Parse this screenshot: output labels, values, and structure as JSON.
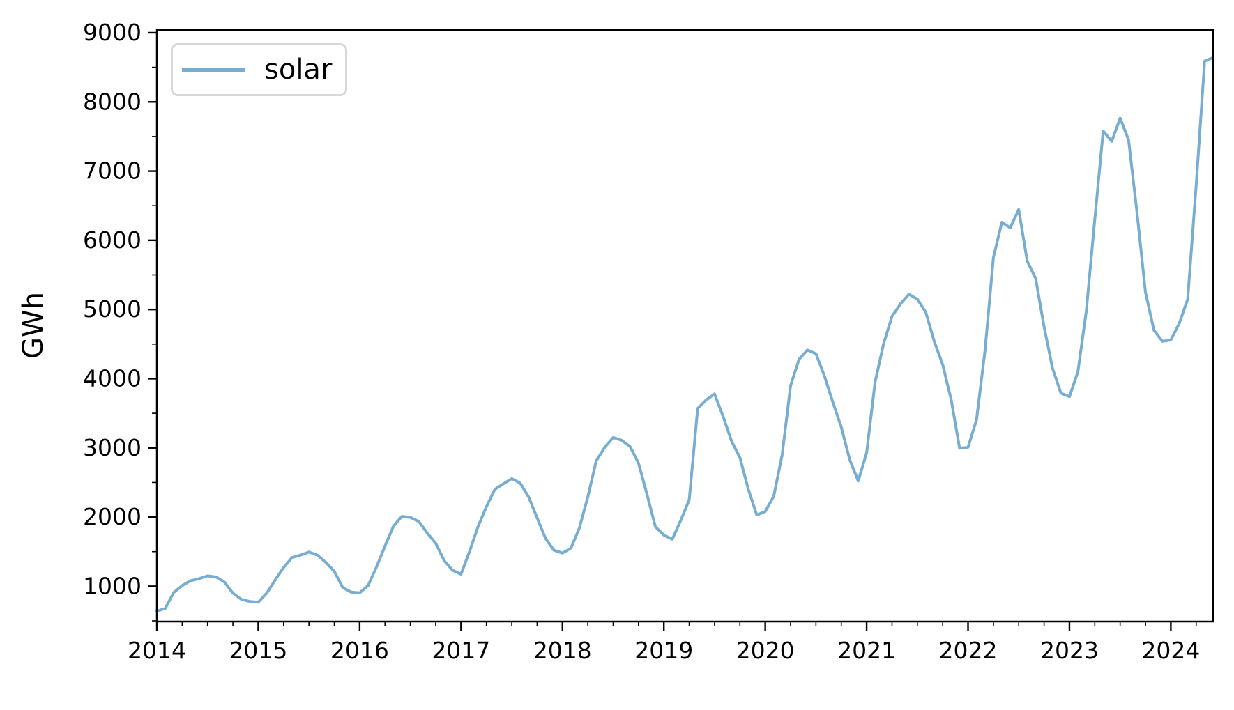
{
  "axes": {
    "ylabel": "GWh"
  },
  "legend": {
    "label": "solar"
  },
  "chart_data": {
    "type": "line",
    "title": "",
    "xlabel": "",
    "ylabel": "GWh",
    "frequency": "monthly",
    "x_start": "2014-01",
    "x_end": "2024-06",
    "x_tick_labels": [
      "2014",
      "2015",
      "2016",
      "2017",
      "2018",
      "2019",
      "2020",
      "2021",
      "2022",
      "2023",
      "2024"
    ],
    "y_ticks": [
      1000,
      2000,
      3000,
      4000,
      5000,
      6000,
      7000,
      8000,
      9000
    ],
    "ylim": [
      490,
      9040
    ],
    "grid": false,
    "legend_position": "upper-left",
    "line_color": "#78add2",
    "series": [
      {
        "name": "solar",
        "color": "#78add2",
        "values": [
          640,
          680,
          910,
          1010,
          1080,
          1110,
          1150,
          1135,
          1060,
          900,
          810,
          780,
          770,
          900,
          1090,
          1270,
          1415,
          1450,
          1495,
          1450,
          1345,
          1215,
          980,
          915,
          905,
          1010,
          1280,
          1580,
          1870,
          2010,
          1995,
          1935,
          1770,
          1620,
          1370,
          1230,
          1175,
          1500,
          1860,
          2150,
          2400,
          2480,
          2555,
          2490,
          2290,
          1990,
          1690,
          1520,
          1480,
          1550,
          1840,
          2290,
          2810,
          3010,
          3150,
          3110,
          3020,
          2780,
          2330,
          1860,
          1740,
          1680,
          1950,
          2250,
          3570,
          3690,
          3780,
          3460,
          3100,
          2860,
          2400,
          2030,
          2080,
          2300,
          2900,
          3900,
          4280,
          4415,
          4360,
          4040,
          3660,
          3300,
          2830,
          2520,
          2930,
          3950,
          4500,
          4900,
          5080,
          5220,
          5150,
          4960,
          4540,
          4200,
          3700,
          2995,
          3010,
          3400,
          4400,
          5750,
          6260,
          6180,
          6445,
          5700,
          5450,
          4750,
          4150,
          3790,
          3740,
          4100,
          4980,
          6300,
          7580,
          7430,
          7765,
          7450,
          6400,
          5250,
          4700,
          4540,
          4560,
          4800,
          5150,
          6800,
          8590,
          8640
        ]
      }
    ]
  }
}
